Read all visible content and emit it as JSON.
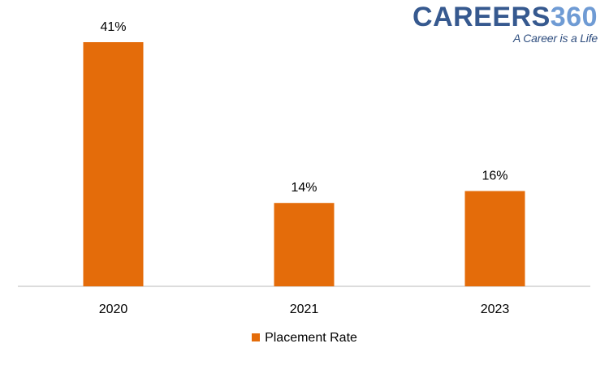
{
  "brand": {
    "name_part1": "CAREERS",
    "name_part2": "360",
    "tagline": "A Career is a Life"
  },
  "colors": {
    "bar": "#e46c0a",
    "axis": "#d0d0d0",
    "brand_dark": "#36598f",
    "brand_light": "#6f9bd4"
  },
  "chart_data": {
    "type": "bar",
    "categories": [
      "2020",
      "2021",
      "2023"
    ],
    "series": [
      {
        "name": "Placement Rate",
        "values": [
          41,
          14,
          16
        ],
        "labels": [
          "41%",
          "14%",
          "16%"
        ]
      }
    ],
    "ylim": [
      0,
      41
    ],
    "grid": false,
    "legend_position": "bottom"
  }
}
